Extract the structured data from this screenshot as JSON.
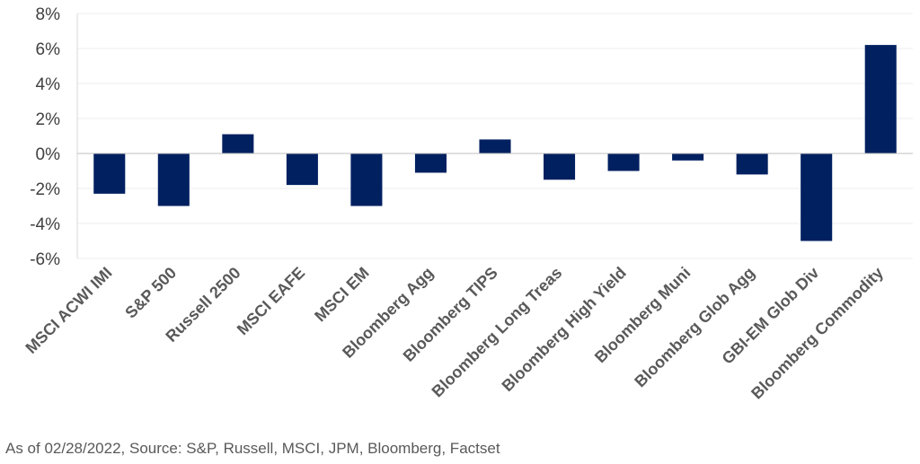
{
  "chart_data": {
    "type": "bar",
    "categories": [
      "MSCI ACWI IMI",
      "S&P 500",
      "Russell 2500",
      "MSCI EAFE",
      "MSCI EM",
      "Bloomberg Agg",
      "Bloomberg TIPS",
      "Bloomberg Long Treas",
      "Bloomberg High Yield",
      "Bloomberg Muni",
      "Bloomberg Glob Agg",
      "GBI-EM Glob Div",
      "Bloomberg Commodity"
    ],
    "values": [
      -2.3,
      -3.0,
      1.1,
      -1.8,
      -3.0,
      -1.1,
      0.8,
      -1.5,
      -1.0,
      -0.4,
      -1.2,
      -5.0,
      6.2
    ],
    "yticks": [
      "8%",
      "6%",
      "4%",
      "2%",
      "0%",
      "-2%",
      "-4%",
      "-6%"
    ],
    "ylim": [
      -6,
      8
    ],
    "grid": true,
    "bar_color": "#002060"
  },
  "footnote": "As of 02/28/2022, Source: S&P, Russell, MSCI, JPM, Bloomberg, Factset"
}
